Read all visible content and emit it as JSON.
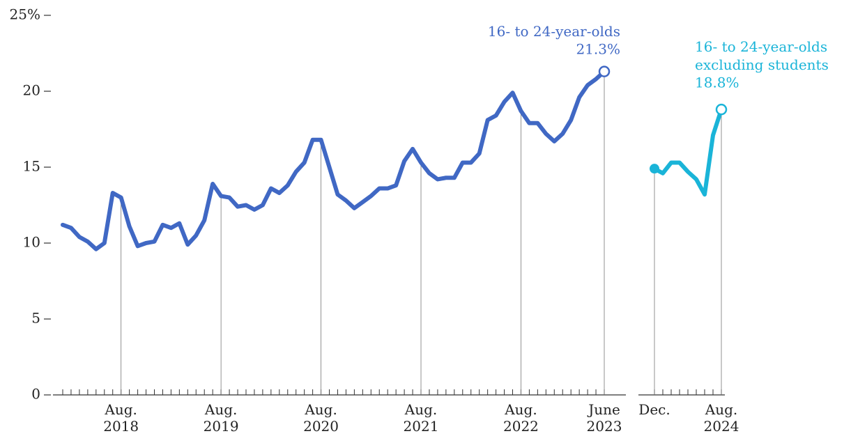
{
  "chart_data": [
    {
      "type": "line",
      "categories": [
        null,
        null,
        null,
        null,
        null,
        null,
        null,
        "Aug. 2018",
        null,
        null,
        null,
        null,
        null,
        null,
        null,
        null,
        null,
        null,
        null,
        "Aug. 2019",
        null,
        null,
        null,
        null,
        null,
        null,
        null,
        null,
        null,
        null,
        null,
        "Aug. 2020",
        null,
        null,
        null,
        null,
        null,
        null,
        null,
        null,
        null,
        null,
        null,
        "Aug. 2021",
        null,
        null,
        null,
        null,
        null,
        null,
        null,
        null,
        null,
        null,
        null,
        "Aug. 2022",
        null,
        null,
        null,
        null,
        null,
        null,
        null,
        null,
        null,
        "June 2023"
      ],
      "series": [
        {
          "name": "16- to 24-year-olds",
          "color": "#4068c4",
          "values": [
            11.2,
            11.0,
            10.4,
            10.1,
            9.6,
            10.0,
            13.3,
            13.0,
            11.1,
            9.8,
            10.0,
            10.1,
            11.2,
            11.0,
            11.3,
            9.9,
            10.5,
            11.5,
            13.9,
            13.1,
            13.0,
            12.4,
            12.5,
            12.2,
            12.5,
            13.6,
            13.3,
            13.8,
            14.7,
            15.3,
            16.8,
            16.8,
            15.0,
            13.2,
            12.8,
            12.3,
            12.7,
            13.1,
            13.6,
            13.6,
            13.8,
            15.4,
            16.2,
            15.3,
            14.6,
            14.2,
            14.3,
            14.3,
            15.3,
            15.3,
            15.9,
            18.1,
            18.4,
            19.3,
            19.9,
            18.7,
            17.9,
            17.9,
            17.2,
            16.7,
            17.2,
            18.1,
            19.6,
            20.4,
            20.8,
            21.3
          ],
          "value_labels": [
            null,
            null,
            null,
            null,
            null,
            null,
            null,
            null,
            null,
            null,
            null,
            null,
            null,
            null,
            null,
            null,
            null,
            null,
            null,
            null,
            null,
            null,
            null,
            null,
            null,
            null,
            null,
            null,
            null,
            null,
            null,
            null,
            null,
            null,
            null,
            null,
            null,
            null,
            null,
            null,
            null,
            null,
            null,
            null,
            null,
            null,
            null,
            null,
            null,
            null,
            null,
            null,
            null,
            null,
            null,
            null,
            null,
            null,
            null,
            null,
            null,
            null,
            null,
            null,
            null,
            "21.3%"
          ]
        }
      ],
      "ylim": [
        0,
        25
      ],
      "yticks": [
        {
          "value": 25,
          "label": "25%"
        },
        20,
        15,
        10,
        5,
        0
      ]
    },
    {
      "type": "line",
      "categories": [
        "Dec.",
        null,
        null,
        null,
        null,
        null,
        null,
        null,
        "Aug. 2024"
      ],
      "series": [
        {
          "name": "16- to 24-year-olds excluding students",
          "color": "#1ab4d8",
          "values": [
            14.9,
            14.6,
            15.3,
            15.3,
            14.7,
            14.2,
            13.2,
            17.1,
            18.8
          ],
          "value_labels": [
            null,
            null,
            null,
            null,
            null,
            null,
            null,
            null,
            "18.8%"
          ]
        }
      ],
      "ylim": [
        0,
        25
      ]
    }
  ]
}
